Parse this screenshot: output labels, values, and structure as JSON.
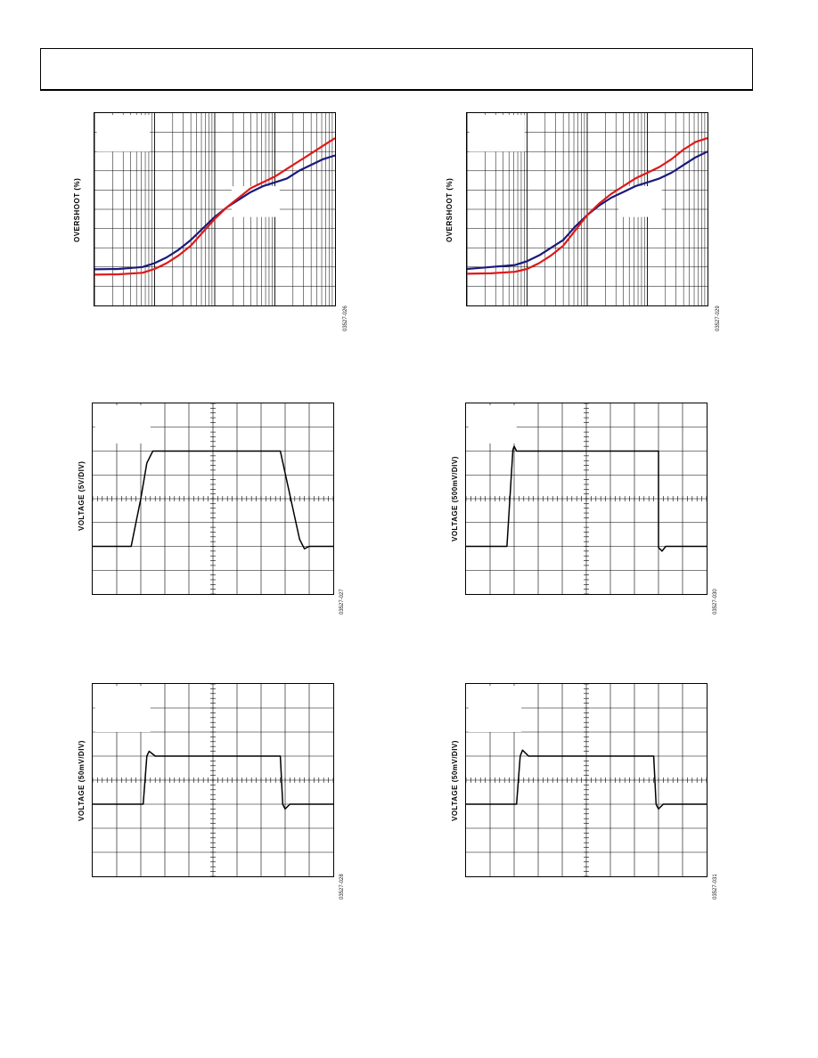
{
  "header": {},
  "chart_data": [
    {
      "type": "line",
      "ylabel": "OVERSHOOT (%)",
      "code": "03527-026",
      "xscale": "log",
      "grid": true,
      "series": [
        {
          "color": "#1a1a7a",
          "x": [
            0,
            0.1,
            0.2,
            0.25,
            0.3,
            0.35,
            0.4,
            0.45,
            0.5,
            0.55,
            0.6,
            0.65,
            0.7,
            0.75,
            0.8,
            0.85,
            0.9,
            0.95,
            1.0
          ],
          "y": [
            0.188,
            0.19,
            0.2,
            0.22,
            0.25,
            0.29,
            0.34,
            0.4,
            0.46,
            0.51,
            0.55,
            0.59,
            0.62,
            0.64,
            0.66,
            0.7,
            0.73,
            0.76,
            0.78
          ]
        },
        {
          "color": "#e01818",
          "x": [
            0,
            0.1,
            0.2,
            0.25,
            0.3,
            0.35,
            0.4,
            0.45,
            0.5,
            0.55,
            0.6,
            0.65,
            0.7,
            0.75,
            0.8,
            0.85,
            0.9,
            0.95,
            1.0
          ],
          "y": [
            0.16,
            0.162,
            0.17,
            0.19,
            0.22,
            0.26,
            0.31,
            0.38,
            0.45,
            0.51,
            0.56,
            0.61,
            0.64,
            0.67,
            0.71,
            0.75,
            0.79,
            0.83,
            0.87
          ]
        }
      ]
    },
    {
      "type": "line",
      "ylabel": "OVERSHOOT (%)",
      "code": "03527-029",
      "xscale": "log",
      "grid": true,
      "series": [
        {
          "color": "#1a1a7a",
          "x": [
            0,
            0.1,
            0.2,
            0.25,
            0.3,
            0.35,
            0.4,
            0.45,
            0.5,
            0.55,
            0.6,
            0.65,
            0.7,
            0.75,
            0.8,
            0.85,
            0.9,
            0.95,
            1.0
          ],
          "y": [
            0.19,
            0.2,
            0.21,
            0.23,
            0.26,
            0.3,
            0.34,
            0.41,
            0.47,
            0.52,
            0.56,
            0.59,
            0.62,
            0.64,
            0.66,
            0.69,
            0.73,
            0.77,
            0.8
          ]
        },
        {
          "color": "#e01818",
          "x": [
            0,
            0.1,
            0.2,
            0.25,
            0.3,
            0.35,
            0.4,
            0.45,
            0.5,
            0.55,
            0.6,
            0.65,
            0.7,
            0.75,
            0.8,
            0.85,
            0.9,
            0.95,
            1.0
          ],
          "y": [
            0.165,
            0.167,
            0.175,
            0.19,
            0.22,
            0.26,
            0.31,
            0.39,
            0.47,
            0.53,
            0.58,
            0.62,
            0.66,
            0.69,
            0.72,
            0.76,
            0.81,
            0.85,
            0.87
          ]
        }
      ]
    },
    {
      "type": "line",
      "ylabel": "VOLTAGE (5V/DIV)",
      "code": "03527-027",
      "grid": true,
      "series": [
        {
          "color": "#000000",
          "x": [
            0,
            0.16,
            0.2,
            0.225,
            0.25,
            0.78,
            0.86,
            0.88,
            0.9,
            1.0
          ],
          "y": [
            -2.0,
            -2.0,
            0.0,
            1.5,
            2.0,
            2.0,
            -1.7,
            -2.1,
            -2.0,
            -2.0
          ]
        }
      ]
    },
    {
      "type": "line",
      "ylabel": "VOLTAGE (500mV/DIV)",
      "code": "03527-030",
      "grid": true,
      "series": [
        {
          "color": "#000000",
          "x": [
            0,
            0.17,
            0.195,
            0.2,
            0.21,
            0.8,
            0.8,
            0.815,
            0.83,
            1.0
          ],
          "y": [
            -2.0,
            -2.0,
            2.05,
            2.2,
            2.0,
            2.0,
            -2.05,
            -2.2,
            -2.0,
            -2.0
          ]
        }
      ]
    },
    {
      "type": "line",
      "ylabel": "VOLTAGE (50mV/DIV)",
      "code": "03527-028",
      "grid": true,
      "series": [
        {
          "color": "#000000",
          "x": [
            0,
            0.21,
            0.225,
            0.235,
            0.26,
            0.78,
            0.79,
            0.8,
            0.82,
            1.0
          ],
          "y": [
            -1.0,
            -1.0,
            1.0,
            1.2,
            1.0,
            1.0,
            -1.0,
            -1.2,
            -1.0,
            -1.0
          ]
        }
      ]
    },
    {
      "type": "line",
      "ylabel": "VOLTAGE (50mV/DIV)",
      "code": "03527-031",
      "grid": true,
      "series": [
        {
          "color": "#000000",
          "x": [
            0,
            0.21,
            0.225,
            0.235,
            0.26,
            0.78,
            0.79,
            0.8,
            0.82,
            1.0
          ],
          "y": [
            -1.0,
            -1.0,
            1.0,
            1.25,
            1.0,
            1.0,
            -1.0,
            -1.2,
            -1.0,
            -1.0
          ]
        }
      ]
    }
  ]
}
